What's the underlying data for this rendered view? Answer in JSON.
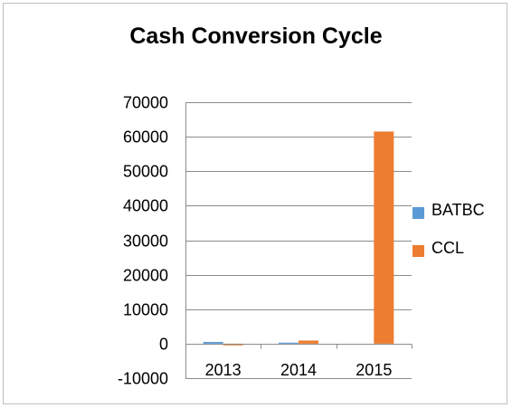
{
  "chart_data": {
    "type": "bar",
    "title": "Cash Conversion Cycle",
    "categories": [
      "2013",
      "2014",
      "2015"
    ],
    "series": [
      {
        "name": "BATBC",
        "values": [
          500,
          300,
          0
        ],
        "color": "#5b9bd5"
      },
      {
        "name": "CCL",
        "values": [
          -500,
          900,
          61500
        ],
        "color": "#ed7d31"
      }
    ],
    "ylim": [
      -10000,
      70000
    ],
    "yticks": [
      70000,
      60000,
      50000,
      40000,
      30000,
      20000,
      10000,
      0,
      -10000
    ],
    "grid": true,
    "legend_position": "right"
  }
}
